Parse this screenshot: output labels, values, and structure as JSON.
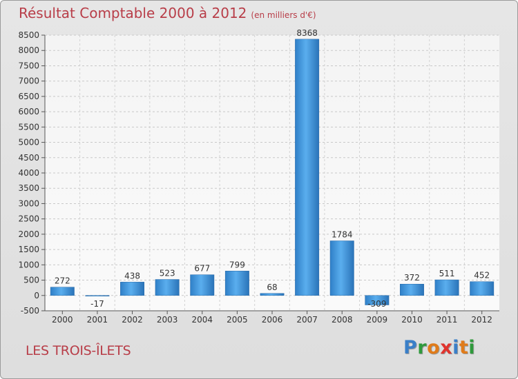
{
  "chart_data": {
    "type": "bar",
    "title": "Résultat Comptable 2000 à 2012",
    "subtitle": "(en milliers d'€)",
    "xlabel": "",
    "ylabel": "",
    "categories": [
      "2000",
      "2001",
      "2002",
      "2003",
      "2004",
      "2005",
      "2006",
      "2007",
      "2008",
      "2009",
      "2010",
      "2011",
      "2012"
    ],
    "values": [
      272,
      -17,
      438,
      523,
      677,
      799,
      68,
      8368,
      1784,
      -309,
      372,
      511,
      452
    ],
    "labels": [
      "272",
      "-17",
      "438",
      "523",
      "677",
      "799",
      "68",
      "8368",
      "1784",
      "-309",
      "372",
      "511",
      "452"
    ],
    "ylim": [
      -500,
      8500
    ],
    "yticks": [
      -500,
      0,
      500,
      1000,
      1500,
      2000,
      2500,
      3000,
      3500,
      4000,
      4500,
      5000,
      5500,
      6000,
      6500,
      7000,
      7500,
      8000,
      8500
    ],
    "grid": true,
    "bar_color": "#3d8fd6"
  },
  "footer": {
    "commune": "LES TROIS-ÎLETS",
    "logo_letters": [
      "P",
      "r",
      "o",
      "x",
      "i",
      "t",
      "i"
    ],
    "logo_colors": [
      "#3a7fc8",
      "#2f9a3c",
      "#e07b1a",
      "#e0342e",
      "#3a7fc8",
      "#e07b1a",
      "#2f9a3c"
    ]
  }
}
